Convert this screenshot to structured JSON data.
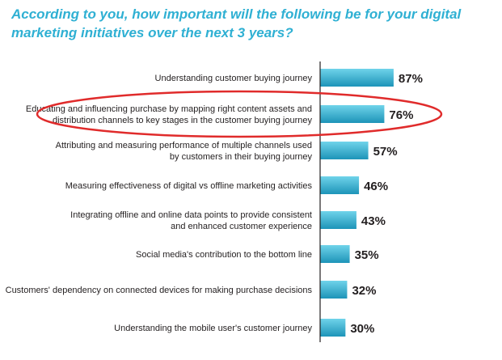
{
  "title": "According to you, how important will the following be for your digital marketing initiatives over the next 3 years?",
  "colors": {
    "title": "#2fb0d3",
    "bar_light": "#6fd3ea",
    "bar_dark": "#1d94b8",
    "axis": "#231f20",
    "highlight_ellipse": "#e02b2b"
  },
  "chart_data": {
    "type": "bar",
    "orientation": "horizontal",
    "title": "According to you, how important will the following be for your digital marketing initiatives over the next 3 years?",
    "categories": [
      [
        "Understanding customer buying journey"
      ],
      [
        "Educating and influencing purchase by mapping right content assets and",
        "distribution channels to key stages in the customer buying journey"
      ],
      [
        "Attributing and measuring performance of multiple channels used",
        "by customers in their buying journey"
      ],
      [
        "Measuring effectiveness of digital vs offline marketing activities"
      ],
      [
        "Integrating offline and online data points to provide consistent",
        "and enhanced customer experience"
      ],
      [
        "Social media's contribution to the bottom line"
      ],
      [
        "Customers' dependency on connected devices for making purchase decisions"
      ],
      [
        "Understanding the mobile user's customer journey"
      ]
    ],
    "values": [
      87,
      76,
      57,
      46,
      43,
      35,
      32,
      30
    ],
    "value_labels": [
      "87%",
      "76%",
      "57%",
      "46%",
      "43%",
      "35%",
      "32%",
      "30%"
    ],
    "highlighted_index": 1,
    "xlim": [
      0,
      100
    ],
    "grid": false,
    "legend": "none"
  }
}
